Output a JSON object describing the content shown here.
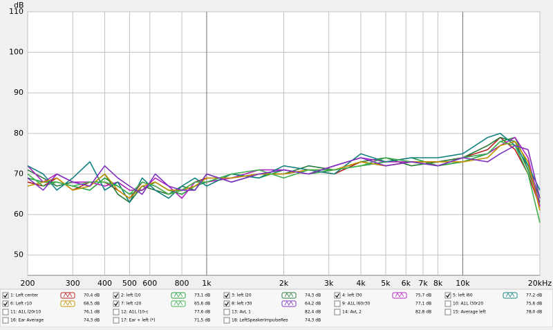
{
  "chart_data": {
    "type": "line",
    "y_label": "dB",
    "log_x": true,
    "grid": true,
    "xlim": [
      200,
      20000
    ],
    "ylim": [
      45,
      110
    ],
    "yticks": [
      50,
      60,
      70,
      80,
      90,
      100,
      110
    ],
    "xticks": [
      200,
      300,
      400,
      500,
      600,
      800,
      {
        "value": 1000,
        "label": "1k"
      },
      {
        "value": 2000,
        "label": "2k"
      },
      {
        "value": 3000,
        "label": "3k"
      },
      {
        "value": 4000,
        "label": "4k"
      },
      {
        "value": 5000,
        "label": "5k"
      },
      {
        "value": 6000,
        "label": "6k"
      },
      {
        "value": 7000,
        "label": "7k"
      },
      {
        "value": 8000,
        "label": "8k"
      },
      {
        "value": 10000,
        "label": "10k"
      },
      {
        "value": 20000,
        "label": "20kHz"
      }
    ],
    "x": [
      200,
      230,
      260,
      300,
      350,
      400,
      450,
      500,
      560,
      630,
      710,
      800,
      900,
      1000,
      1250,
      1600,
      2000,
      2500,
      3150,
      4000,
      5000,
      6300,
      8000,
      10000,
      12500,
      14000,
      16000,
      18000,
      20000
    ],
    "series": [
      {
        "name": "1: Left center",
        "level": "70,4 dB",
        "checked": true,
        "color": "#b22020",
        "values": [
          68,
          67,
          69,
          66,
          68,
          68,
          66,
          64,
          68,
          67,
          65,
          66,
          68,
          69,
          69,
          70,
          70,
          71,
          70,
          73,
          72,
          73,
          73,
          74,
          76,
          79,
          76,
          70,
          62
        ]
      },
      {
        "name": "2: left l10",
        "level": "73,1 dB",
        "checked": true,
        "color": "#20a040",
        "values": [
          69,
          68,
          68,
          67,
          66,
          69,
          67,
          65,
          66,
          68,
          66,
          65,
          67,
          68,
          70,
          69,
          71,
          70,
          71,
          72,
          73,
          74,
          72,
          73,
          75,
          78,
          79,
          72,
          64
        ]
      },
      {
        "name": "3: left l20",
        "level": "74,3 dB",
        "checked": true,
        "color": "#2a7a3a",
        "values": [
          71,
          69,
          67,
          68,
          67,
          70,
          65,
          63,
          67,
          66,
          65,
          67,
          66,
          70,
          68,
          70,
          70,
          72,
          71,
          73,
          74,
          72,
          73,
          74,
          77,
          79,
          78,
          71,
          63
        ]
      },
      {
        "name": "4: left l30",
        "level": "75,7 dB",
        "checked": true,
        "color": "#b020c0",
        "values": [
          72,
          68,
          70,
          68,
          68,
          67,
          68,
          66,
          66,
          69,
          67,
          64,
          68,
          68,
          69,
          71,
          71,
          70,
          72,
          74,
          73,
          73,
          72,
          74,
          75,
          77,
          79,
          74,
          62
        ]
      },
      {
        "name": "5: left l60",
        "level": "77,2 dB",
        "checked": true,
        "color": "#138080",
        "values": [
          72,
          70,
          66,
          69,
          73,
          66,
          68,
          63,
          69,
          66,
          64,
          67,
          69,
          67,
          70,
          69,
          72,
          71,
          70,
          75,
          73,
          74,
          74,
          75,
          79,
          80,
          77,
          72,
          66
        ]
      },
      {
        "name": "6: Left r10",
        "level": "68,5 dB",
        "checked": true,
        "color": "#c09000",
        "values": [
          67,
          68,
          69,
          66,
          67,
          70,
          66,
          64,
          67,
          68,
          66,
          66,
          67,
          69,
          69,
          70,
          70,
          71,
          71,
          73,
          72,
          73,
          73,
          73,
          74,
          77,
          78,
          73,
          61
        ]
      },
      {
        "name": "7: left r20",
        "level": "65,6 dB",
        "checked": true,
        "color": "#40b050",
        "values": [
          70,
          67,
          68,
          67,
          68,
          68,
          67,
          65,
          68,
          67,
          65,
          66,
          68,
          68,
          70,
          71,
          69,
          71,
          71,
          72,
          74,
          73,
          72,
          74,
          75,
          78,
          77,
          70,
          58
        ]
      },
      {
        "name": "8: left r30",
        "level": "64,2 dB",
        "checked": true,
        "color": "#8030c0",
        "values": [
          69,
          66,
          70,
          68,
          67,
          72,
          69,
          67,
          65,
          70,
          67,
          66,
          66,
          70,
          68,
          70,
          71,
          70,
          72,
          74,
          72,
          73,
          72,
          74,
          73,
          75,
          77,
          76,
          64
        ]
      }
    ],
    "inactive_series": [
      {
        "name": "9: A1L l60r30",
        "level": "77,1 dB",
        "color": "#909090"
      },
      {
        "name": "10: A1L l30r20",
        "level": "75,6 dB",
        "color": "#138080"
      },
      {
        "name": "11: A1L l20r10",
        "level": "76,1 dB",
        "color": "#c06000"
      },
      {
        "name": "12: A1L l10-c",
        "level": "77,6 dB",
        "color": "#20a040"
      },
      {
        "name": "13: AvL 1",
        "level": "82,4 dB",
        "color": "#9040c0"
      },
      {
        "name": "14: AvL 2",
        "level": "82,8 dB",
        "color": "#9040c0"
      },
      {
        "name": "15: Average left",
        "level": "78,0 dB",
        "color": "#138080"
      },
      {
        "name": "16: Ear Average",
        "level": "74,3 dB",
        "color": "#c09000"
      },
      {
        "name": "17: Ear + left (*)",
        "level": "71,5 dB",
        "color": "#40b050"
      },
      {
        "name": "18: LeftSpeakerImpulseRes",
        "level": "74,3 dB",
        "color": "#9040c0"
      }
    ]
  }
}
